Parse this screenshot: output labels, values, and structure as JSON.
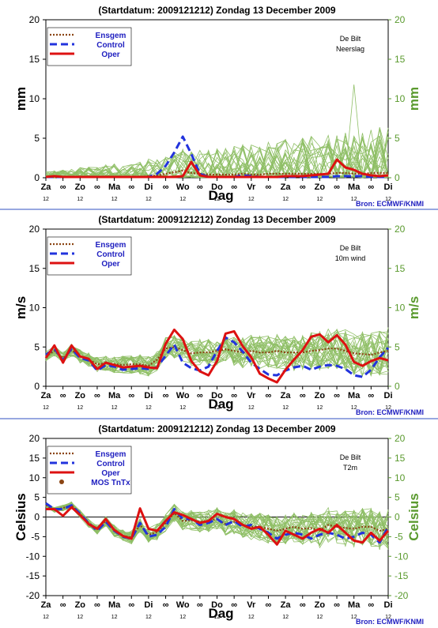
{
  "colors": {
    "ensemble": "#8fbf66",
    "ensgem": "#8b4513",
    "control": "#2233dd",
    "oper": "#dd1111",
    "mos": "#8b4513",
    "separator": "#3050c0",
    "right_axis": "#5a9a2e"
  },
  "chart_data": [
    {
      "type": "line",
      "title": "(Startdatum: 2009121212)   Zondag    13 December  2009",
      "location": "De Bilt",
      "variable": "Neerslag",
      "ylabel": "mm",
      "xlabel": "Dag",
      "source": "Bron: ECMWF/KNMI",
      "ylim": [
        0,
        20
      ],
      "yticks": [
        0,
        5,
        10,
        15,
        20
      ],
      "xlim": [
        0,
        20
      ],
      "x_tick_labels": [
        "Za",
        "∞",
        "Zo",
        "∞",
        "Ma",
        "∞",
        "Di",
        "∞",
        "Wo",
        "∞",
        "Do",
        "∞",
        "Vr",
        "∞",
        "Za",
        "∞",
        "Zo",
        "∞",
        "Ma",
        "∞",
        "Di"
      ],
      "x_hour_labels": [
        "12",
        "",
        "12",
        "",
        "12",
        "",
        "12",
        "",
        "12",
        "",
        "12",
        "",
        "12",
        "",
        "12",
        "",
        "12",
        "",
        "12",
        "",
        "12"
      ],
      "legend": [
        "Ensgem",
        "Control",
        "Oper"
      ],
      "x": [
        0,
        0.5,
        1,
        1.5,
        2,
        2.5,
        3,
        3.5,
        4,
        4.5,
        5,
        5.5,
        6,
        6.5,
        7,
        7.5,
        8,
        8.5,
        9,
        9.5,
        10,
        10.5,
        11,
        11.5,
        12,
        12.5,
        13,
        13.5,
        14,
        14.5,
        15,
        15.5,
        16,
        16.5,
        17,
        17.5,
        18,
        18.5,
        19,
        19.5,
        20
      ],
      "series": [
        {
          "name": "Ensgem",
          "values": [
            0.1,
            0.1,
            0.1,
            0.1,
            0.1,
            0.1,
            0.1,
            0.1,
            0.1,
            0.1,
            0.1,
            0.1,
            0.2,
            0.3,
            0.5,
            0.7,
            0.9,
            0.6,
            0.5,
            0.4,
            0.4,
            0.4,
            0.4,
            0.5,
            0.4,
            0.4,
            0.5,
            0.5,
            0.5,
            0.5,
            0.5,
            0.5,
            0.5,
            0.5,
            0.6,
            0.6,
            0.5,
            0.5,
            0.6,
            0.6,
            0.6
          ]
        },
        {
          "name": "Control",
          "values": [
            0.1,
            0.1,
            0.1,
            0.1,
            0.1,
            0.1,
            0.1,
            0.1,
            0.1,
            0.1,
            0.1,
            0.1,
            0.1,
            0.5,
            1.5,
            3.2,
            5.2,
            3.0,
            0.5,
            0.1,
            0.1,
            0.1,
            0.1,
            0.3,
            0.2,
            0.1,
            0.1,
            0.1,
            0.1,
            0.1,
            0.1,
            0.1,
            0.1,
            0.1,
            0.2,
            0.2,
            0.2,
            0.2,
            0.1,
            0.1,
            0.1
          ]
        },
        {
          "name": "Oper",
          "values": [
            0.1,
            0.2,
            0.1,
            0.1,
            0.1,
            0.1,
            0.1,
            0.1,
            0.1,
            0.1,
            0.1,
            0.1,
            0.1,
            0.1,
            0.1,
            0.1,
            0.2,
            2.0,
            0.3,
            0.1,
            0.1,
            0.1,
            0.1,
            0.1,
            0.1,
            0.1,
            0.1,
            0.1,
            0.2,
            0.2,
            0.2,
            0.3,
            0.4,
            0.5,
            2.3,
            1.3,
            1.0,
            0.5,
            0.3,
            0.2,
            0.3
          ]
        }
      ]
    },
    {
      "type": "line",
      "title": "(Startdatum: 2009121212)   Zondag    13 December  2009",
      "location": "De Bilt",
      "variable": "10m wind",
      "ylabel": "m/s",
      "xlabel": "Dag",
      "source": "Bron: ECMWF/KNMI",
      "ylim": [
        0,
        20
      ],
      "yticks": [
        0,
        5,
        10,
        15,
        20
      ],
      "xlim": [
        0,
        20
      ],
      "x_tick_labels": [
        "Za",
        "∞",
        "Zo",
        "∞",
        "Ma",
        "∞",
        "Di",
        "∞",
        "Wo",
        "∞",
        "Do",
        "∞",
        "Vr",
        "∞",
        "Za",
        "∞",
        "Zo",
        "∞",
        "Ma",
        "∞",
        "Di"
      ],
      "x_hour_labels": [
        "12",
        "",
        "12",
        "",
        "12",
        "",
        "12",
        "",
        "12",
        "",
        "12",
        "",
        "12",
        "",
        "12",
        "",
        "12",
        "",
        "12",
        "",
        "12"
      ],
      "legend": [
        "Ensgem",
        "Control",
        "Oper"
      ],
      "x": [
        0,
        0.5,
        1,
        1.5,
        2,
        2.5,
        3,
        3.5,
        4,
        4.5,
        5,
        5.5,
        6,
        6.5,
        7,
        7.5,
        8,
        8.5,
        9,
        9.5,
        10,
        10.5,
        11,
        11.5,
        12,
        12.5,
        13,
        13.5,
        14,
        14.5,
        15,
        15.5,
        16,
        16.5,
        17,
        17.5,
        18,
        18.5,
        19,
        19.5,
        20
      ],
      "series": [
        {
          "name": "Ensgem",
          "values": [
            3.8,
            4.5,
            3.6,
            4.6,
            3.8,
            3.4,
            2.8,
            2.9,
            2.8,
            2.7,
            2.8,
            2.8,
            2.6,
            3.4,
            4.8,
            5.0,
            4.6,
            4.2,
            4.3,
            4.3,
            4.5,
            4.7,
            4.5,
            4.3,
            4.5,
            4.3,
            4.3,
            4.5,
            4.3,
            4.3,
            4.3,
            4.5,
            4.6,
            4.8,
            4.8,
            4.5,
            4.2,
            4.1,
            4.0,
            4.3,
            4.5
          ]
        },
        {
          "name": "Control",
          "values": [
            4.0,
            4.8,
            3.3,
            4.8,
            3.6,
            3.3,
            2.0,
            2.7,
            2.5,
            2.1,
            2.2,
            2.3,
            2.2,
            2.4,
            3.9,
            5.3,
            3.0,
            2.3,
            2.0,
            2.5,
            4.5,
            6.2,
            5.6,
            4.4,
            3.0,
            2.2,
            1.5,
            1.4,
            2.0,
            2.4,
            2.6,
            2.1,
            2.5,
            2.7,
            2.6,
            2.2,
            1.4,
            1.2,
            2.1,
            3.7,
            4.9
          ]
        },
        {
          "name": "Oper",
          "values": [
            3.6,
            5.2,
            3.0,
            5.2,
            3.8,
            3.5,
            2.2,
            3.0,
            2.7,
            2.4,
            2.5,
            2.6,
            2.4,
            2.3,
            5.4,
            7.2,
            6.0,
            3.2,
            1.9,
            1.4,
            3.2,
            6.7,
            7.0,
            5.1,
            3.7,
            1.6,
            1.0,
            0.5,
            2.1,
            3.4,
            4.6,
            6.3,
            6.6,
            5.6,
            6.5,
            5.3,
            3.1,
            2.6,
            3.2,
            3.6,
            3.3
          ]
        }
      ]
    },
    {
      "type": "line",
      "title": "(Startdatum: 2009121212)   Zondag    13 December  2009",
      "location": "De Bilt",
      "variable": "T2m",
      "ylabel": "Celsius",
      "xlabel": "Dag",
      "source": "Bron: ECMWF/KNMI",
      "ylim": [
        -20,
        20
      ],
      "yticks": [
        -20,
        -15,
        -10,
        -5,
        0,
        5,
        10,
        15,
        20
      ],
      "xlim": [
        0,
        20
      ],
      "x_tick_labels": [
        "Za",
        "∞",
        "Zo",
        "∞",
        "Ma",
        "∞",
        "Di",
        "∞",
        "Wo",
        "∞",
        "Do",
        "∞",
        "Vr",
        "∞",
        "Za",
        "∞",
        "Zo",
        "∞",
        "Ma",
        "∞",
        "Di"
      ],
      "x_hour_labels": [
        "12",
        "",
        "12",
        "",
        "12",
        "",
        "12",
        "",
        "12",
        "",
        "12",
        "",
        "12",
        "",
        "12",
        "",
        "12",
        "",
        "12",
        "",
        "12"
      ],
      "legend": [
        "Ensgem",
        "Control",
        "Oper",
        "MOS TnTx"
      ],
      "x": [
        0,
        0.5,
        1,
        1.5,
        2,
        2.5,
        3,
        3.5,
        4,
        4.5,
        5,
        5.5,
        6,
        6.5,
        7,
        7.5,
        8,
        8.5,
        9,
        9.5,
        10,
        10.5,
        11,
        11.5,
        12,
        12.5,
        13,
        13.5,
        14,
        14.5,
        15,
        15.5,
        16,
        16.5,
        17,
        17.5,
        18,
        18.5,
        19,
        19.5,
        20
      ],
      "series": [
        {
          "name": "Ensgem",
          "values": [
            3.0,
            1.8,
            2.3,
            3.0,
            0.8,
            -1.5,
            -3.2,
            -1.0,
            -3.5,
            -4.8,
            -5.2,
            -2.0,
            -4.5,
            -3.8,
            -1.5,
            1.0,
            -1.0,
            -0.8,
            -1.2,
            -1.0,
            -0.5,
            -1.8,
            -1.2,
            -2.0,
            -2.5,
            -2.5,
            -3.0,
            -3.5,
            -3.0,
            -2.5,
            -3.0,
            -2.8,
            -3.5,
            -2.0,
            -2.5,
            -2.8,
            -3.0,
            -2.5,
            -2.5,
            -3.5,
            -3.0
          ]
        },
        {
          "name": "Control",
          "values": [
            3.5,
            2.0,
            2.0,
            3.0,
            0.8,
            -1.5,
            -3.5,
            -1.2,
            -3.5,
            -5.0,
            -5.5,
            -1.5,
            -5.0,
            -4.5,
            -2.5,
            2.0,
            -0.5,
            -0.5,
            -2.0,
            -1.5,
            -0.5,
            -2.0,
            -1.0,
            -2.5,
            -2.0,
            -3.0,
            -4.0,
            -5.5,
            -4.5,
            -4.0,
            -4.5,
            -5.5,
            -4.5,
            -4.0,
            -4.5,
            -5.5,
            -5.0,
            -4.0,
            -4.5,
            -6.5,
            -2.5
          ]
        },
        {
          "name": "Oper",
          "values": [
            2.0,
            2.0,
            0.3,
            2.5,
            0.5,
            -1.8,
            -3.0,
            -0.5,
            -3.3,
            -4.8,
            -5.5,
            2.2,
            -3.0,
            -3.5,
            -1.0,
            1.2,
            0.5,
            -0.5,
            -1.5,
            -1.0,
            0.8,
            0.0,
            -0.5,
            -2.0,
            -3.0,
            -2.5,
            -4.5,
            -7.0,
            -3.5,
            -4.5,
            -5.5,
            -4.0,
            -3.0,
            -4.0,
            -2.0,
            -4.0,
            -6.0,
            -6.5,
            -4.0,
            -6.0,
            -3.5
          ]
        }
      ]
    }
  ]
}
